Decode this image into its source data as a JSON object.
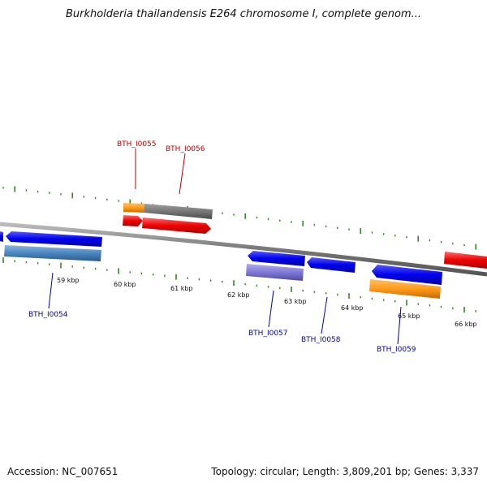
{
  "title": "Burkholderia thailandensis E264 chromosome I, complete genom...",
  "footer": {
    "accession": "Accession: NC_007651",
    "summary": "Topology: circular; Length: 3,809,201 bp; Genes: 3,337"
  },
  "scale": {
    "ticks": [
      "59 kbp",
      "60 kbp",
      "61 kbp",
      "62 kbp",
      "63 kbp",
      "64 kbp",
      "65 kbp",
      "66 kbp"
    ]
  },
  "genes": {
    "top_labels": [
      "BTH_I0055",
      "BTH_I0056"
    ],
    "bottom_labels": [
      "BTH_I0054",
      "BTH_I0057",
      "BTH_I0058",
      "BTH_I0059"
    ]
  },
  "colors": {
    "backbone": "#888888",
    "forward_cds": "#e8000b",
    "reverse_cds": "#0000e6",
    "orange_feature": "#ff9a1a",
    "grey_feature": "#777777",
    "steelblue_feature": "#4a86c0",
    "purple_feature": "#7f79d6",
    "tick_green": "#2e8b20"
  }
}
